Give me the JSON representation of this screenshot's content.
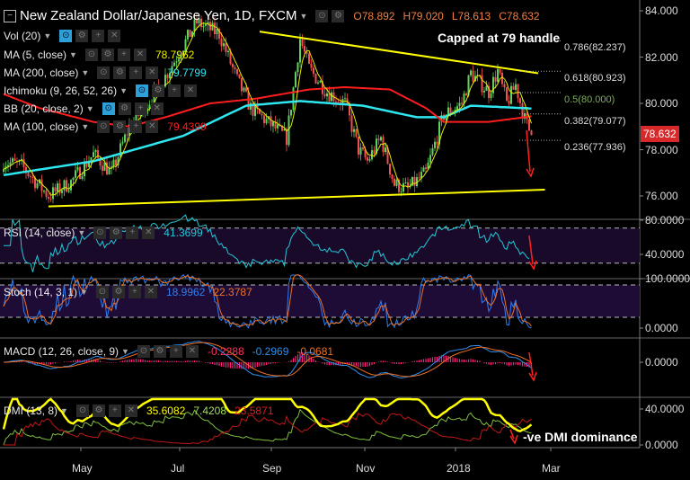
{
  "header": {
    "title": "New Zealand Dollar/Japanese Yen, 1D, FXCM",
    "open": "O78.892",
    "high": "H79.020",
    "low": "L78.613",
    "close": "C78.632"
  },
  "legend": [
    {
      "label": "Vol (20)",
      "value": ""
    },
    {
      "label": "MA (5, close)",
      "value": "78.7962",
      "color": "#f0f000"
    },
    {
      "label": "MA (200, close)",
      "value": "79.7799",
      "color": "#2ee6f0"
    },
    {
      "label": "Ichimoku (9, 26, 52, 26)",
      "value": ""
    },
    {
      "label": "BB (20, close, 2)",
      "value": ""
    },
    {
      "label": "MA (100, close)",
      "value": "79.4399",
      "color": "#ff2020"
    }
  ],
  "indicators": {
    "rsi": {
      "label": "RSI (14, close)",
      "value": "41.3699"
    },
    "stoch": {
      "label": "Stoch (14, 3, 1)",
      "k": "18.9962",
      "d": "22.3787"
    },
    "macd": {
      "label": "MACD (12, 26, close, 9)",
      "hist": "-0.2288",
      "macd": "-0.2969",
      "signal": "-0.0681"
    },
    "dmi": {
      "label": "DMI (13, 8)",
      "adx": "35.6082",
      "plus": "7.4208",
      "minus": "23.5871"
    }
  },
  "price_axis": [
    "84.000",
    "82.000",
    "80.000",
    "78.000",
    "76.000"
  ],
  "rsi_axis": [
    "80.0000",
    "40.0000"
  ],
  "stoch_axis": [
    "100.0000",
    "0.0000"
  ],
  "macd_axis": [
    "0.0000"
  ],
  "dmi_axis": [
    "40.0000",
    "0.0000"
  ],
  "time_axis": [
    "May",
    "Jul",
    "Sep",
    "Nov",
    "2018",
    "Mar"
  ],
  "last_price": "78.632",
  "annotations": {
    "capped": "Capped at 79 handle",
    "dmi": "-ve DMI dominance"
  },
  "fib_levels": [
    {
      "label": "0.786(82.237)",
      "price": 82.237,
      "color": "#dddddd"
    },
    {
      "label": "0.618(80.923)",
      "price": 80.923,
      "color": "#dddddd"
    },
    {
      "label": "0.5(80.000)",
      "price": 80.0,
      "color": "#7fae5a"
    },
    {
      "label": "0.382(79.077)",
      "price": 79.077,
      "color": "#dddddd"
    },
    {
      "label": "0.236(77.936)",
      "price": 77.936,
      "color": "#dddddd"
    }
  ],
  "chart_data": {
    "type": "candlestick",
    "title": "New Zealand Dollar/Japanese Yen, 1D, FXCM",
    "ylim": [
      75,
      84.5
    ],
    "n_days": 236,
    "close_keypoints": [
      [
        0,
        77.5
      ],
      [
        8,
        77.3
      ],
      [
        20,
        76.0
      ],
      [
        30,
        76.6
      ],
      [
        40,
        77.8
      ],
      [
        48,
        77.0
      ],
      [
        56,
        79.0
      ],
      [
        68,
        80.5
      ],
      [
        80,
        82.5
      ],
      [
        86,
        83.5
      ],
      [
        96,
        83.0
      ],
      [
        104,
        81.0
      ],
      [
        110,
        79.8
      ],
      [
        120,
        79.0
      ],
      [
        126,
        78.5
      ],
      [
        132,
        82.8
      ],
      [
        136,
        81.5
      ],
      [
        144,
        80.5
      ],
      [
        152,
        80.0
      ],
      [
        158,
        78.0
      ],
      [
        162,
        77.5
      ],
      [
        168,
        78.5
      ],
      [
        174,
        76.5
      ],
      [
        180,
        76.3
      ],
      [
        188,
        77.0
      ],
      [
        196,
        79.5
      ],
      [
        204,
        80.0
      ],
      [
        208,
        81.3
      ],
      [
        216,
        80.5
      ],
      [
        220,
        81.4
      ],
      [
        224,
        80.0
      ],
      [
        228,
        80.8
      ],
      [
        232,
        79.3
      ],
      [
        235,
        78.632
      ]
    ],
    "ma200_keypoints": [
      [
        0,
        76.9
      ],
      [
        40,
        77.5
      ],
      [
        80,
        78.6
      ],
      [
        108,
        79.9
      ],
      [
        132,
        80.1
      ],
      [
        160,
        79.9
      ],
      [
        184,
        79.4
      ],
      [
        196,
        79.4
      ],
      [
        208,
        79.9
      ],
      [
        235,
        79.78
      ]
    ],
    "ma100_keypoints": [
      [
        0,
        80.4
      ],
      [
        16,
        79.8
      ],
      [
        40,
        79.2
      ],
      [
        56,
        79.0
      ],
      [
        72,
        79.4
      ],
      [
        92,
        80.0
      ],
      [
        112,
        80.2
      ],
      [
        136,
        80.6
      ],
      [
        152,
        80.7
      ],
      [
        172,
        80.6
      ],
      [
        188,
        79.8
      ],
      [
        196,
        79.2
      ],
      [
        216,
        79.2
      ],
      [
        235,
        79.44
      ]
    ],
    "trendlines": [
      {
        "name": "resistance",
        "from": [
          114,
          83.1
        ],
        "to": [
          238,
          81.3
        ]
      },
      {
        "name": "support",
        "from": [
          20,
          75.55
        ],
        "to": [
          241,
          76.27
        ]
      }
    ]
  },
  "colors": {
    "up": "#5fd35f",
    "down": "#f05050",
    "ma5": "#e8e800",
    "ma100": "#ff1e1e",
    "ma200": "#2ee6f0",
    "trend": "#ffff00",
    "rsi": "#22c8d8",
    "stochK": "#2e7ff0",
    "stochD": "#f07020",
    "macd": "#2e8ff0",
    "signal": "#f07020",
    "hist": "#ff2080",
    "adx": "#ffff00",
    "plusDI": "#7fbf3f",
    "minusDI": "#c01818",
    "band": "#1a0a2a"
  }
}
